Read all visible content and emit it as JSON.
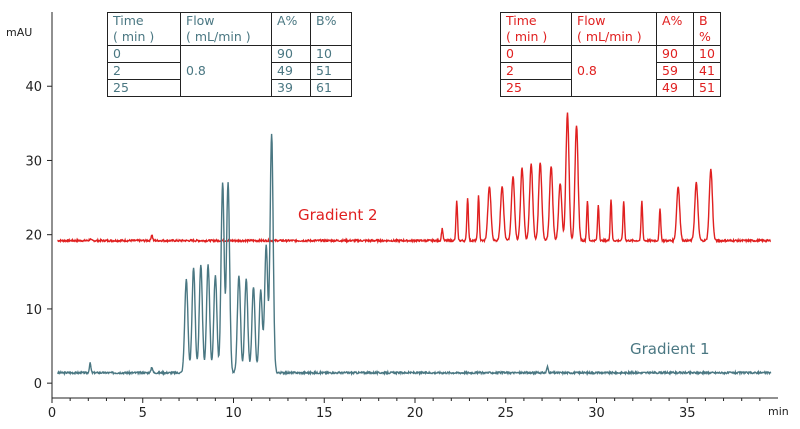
{
  "chart_data": {
    "type": "line",
    "xlabel": "min",
    "ylabel": "mAU",
    "xlim": [
      0,
      40
    ],
    "ylim": [
      -2,
      50
    ],
    "x_ticks": [
      0,
      5,
      10,
      15,
      20,
      25,
      30,
      35
    ],
    "y_ticks": [
      0,
      10,
      20,
      30,
      40
    ],
    "colors": {
      "gradient_1": "#4a7782",
      "gradient_2": "#e02020"
    },
    "series": [
      {
        "name": "Gradient 2",
        "color": "#e02020",
        "baseline": 19.2,
        "peaks": [
          {
            "x": 2.1,
            "y": 21.0
          },
          {
            "x": 2.1,
            "y": 17.6
          },
          {
            "x": 5.5,
            "y": 20.0
          },
          {
            "x": 21.5,
            "y": 20.8
          },
          {
            "x": 22.3,
            "y": 24.5
          },
          {
            "x": 22.9,
            "y": 25.0
          },
          {
            "x": 23.5,
            "y": 25.2
          },
          {
            "x": 24.1,
            "y": 26.5
          },
          {
            "x": 24.8,
            "y": 26.6
          },
          {
            "x": 25.4,
            "y": 27.8
          },
          {
            "x": 25.9,
            "y": 29.0
          },
          {
            "x": 26.4,
            "y": 29.5
          },
          {
            "x": 26.9,
            "y": 29.8
          },
          {
            "x": 27.5,
            "y": 29.3
          },
          {
            "x": 28.0,
            "y": 27.0
          },
          {
            "x": 28.4,
            "y": 36.4
          },
          {
            "x": 28.9,
            "y": 34.8
          },
          {
            "x": 29.5,
            "y": 24.6
          },
          {
            "x": 30.1,
            "y": 24.0
          },
          {
            "x": 30.8,
            "y": 24.8
          },
          {
            "x": 31.5,
            "y": 24.5
          },
          {
            "x": 32.5,
            "y": 24.5
          },
          {
            "x": 33.5,
            "y": 23.5
          },
          {
            "x": 34.5,
            "y": 26.5
          },
          {
            "x": 35.5,
            "y": 27.0
          },
          {
            "x": 36.3,
            "y": 28.8
          }
        ]
      },
      {
        "name": "Gradient 1",
        "color": "#4a7782",
        "baseline": 1.4,
        "peaks": [
          {
            "x": 2.1,
            "y": 3.8
          },
          {
            "x": 2.1,
            "y": 0.3
          },
          {
            "x": 5.5,
            "y": 2.2
          },
          {
            "x": 7.4,
            "y": 14.0
          },
          {
            "x": 7.8,
            "y": 15.5
          },
          {
            "x": 8.2,
            "y": 16.0
          },
          {
            "x": 8.6,
            "y": 16.0
          },
          {
            "x": 9.0,
            "y": 14.5
          },
          {
            "x": 9.4,
            "y": 27.0
          },
          {
            "x": 9.7,
            "y": 27.0
          },
          {
            "x": 10.3,
            "y": 14.5
          },
          {
            "x": 10.7,
            "y": 14.0
          },
          {
            "x": 11.1,
            "y": 13.0
          },
          {
            "x": 11.5,
            "y": 12.5
          },
          {
            "x": 11.8,
            "y": 18.5
          },
          {
            "x": 12.1,
            "y": 33.6
          },
          {
            "x": 27.3,
            "y": 2.2
          }
        ]
      }
    ],
    "annotations": [
      "Gradient 2",
      "Gradient 1"
    ]
  },
  "tables": [
    {
      "color": "#4a7782",
      "header": [
        "Time\n( min )",
        "Flow\n( mL/min )",
        "A%",
        "B%"
      ],
      "rows": [
        [
          "0",
          "0.8",
          "90",
          "10"
        ],
        [
          "2",
          "",
          "49",
          "51"
        ],
        [
          "25",
          "",
          "39",
          "61"
        ]
      ]
    },
    {
      "color": "#e02020",
      "header": [
        "Time\n( min )",
        "Flow\n( mL/min )",
        "A%",
        "B\n%"
      ],
      "rows": [
        [
          "0",
          "0.8",
          "90",
          "10"
        ],
        [
          "2",
          "",
          "59",
          "41"
        ],
        [
          "25",
          "",
          "49",
          "51"
        ]
      ]
    }
  ]
}
